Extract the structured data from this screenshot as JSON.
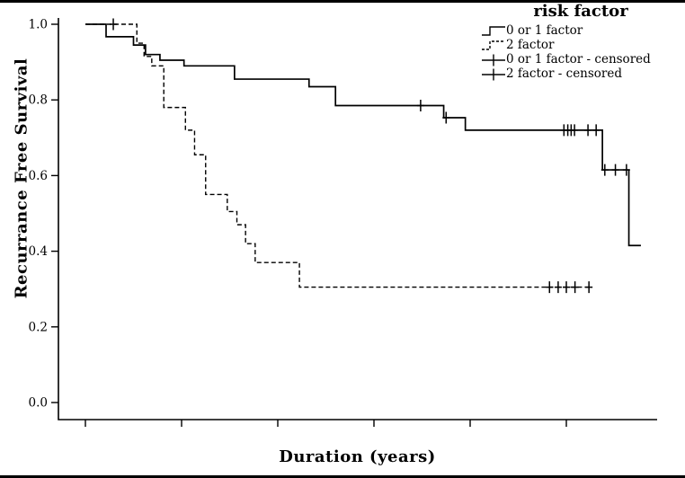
{
  "chart_data": {
    "type": "line",
    "chart_style": "kaplan-meier-step",
    "title": "",
    "xlabel": "Duration (years)",
    "ylabel": "Recurrance Free Survival",
    "grid": false,
    "legend": {
      "title": "risk factor",
      "position": "top-right",
      "entries": [
        {
          "label": "0 or 1 factor",
          "sample": "solid-step"
        },
        {
          "label": "2 factor",
          "sample": "dashed-step"
        },
        {
          "label": "0 or 1 factor - censored",
          "sample": "line-plus"
        },
        {
          "label": "2 factor - censored",
          "sample": "line-plus"
        }
      ]
    },
    "axes": {
      "xlim": [
        0,
        12.4
      ],
      "ylim": [
        0,
        1.05
      ],
      "x_ticks": [
        0,
        2,
        4,
        6,
        8,
        10
      ],
      "x_tick_labels": [
        "",
        "",
        "",
        "",
        "",
        ""
      ],
      "y_ticks": [
        1.0,
        0.8,
        0.6,
        0.4,
        0.2,
        0.0
      ],
      "y_tick_labels": [
        "1.0",
        "0.8",
        "0.6",
        "0.4",
        "0.2",
        "0.0"
      ]
    },
    "series": [
      {
        "name": "0 or 1 factor",
        "line_style": "solid",
        "color": "#000000",
        "steps": [
          [
            0,
            1.0
          ],
          [
            0.43,
            0.967
          ],
          [
            1.0,
            0.945
          ],
          [
            1.25,
            0.92
          ],
          [
            1.55,
            0.905
          ],
          [
            2.05,
            0.89
          ],
          [
            3.1,
            0.855
          ],
          [
            4.65,
            0.835
          ],
          [
            5.2,
            0.785
          ],
          [
            7.45,
            0.753
          ],
          [
            7.9,
            0.72
          ],
          [
            10.75,
            0.615
          ],
          [
            11.3,
            0.415
          ],
          [
            11.55,
            0.415
          ]
        ],
        "censored": [
          [
            6.97,
            0.785
          ],
          [
            7.5,
            0.753
          ],
          [
            9.95,
            0.72
          ],
          [
            10.03,
            0.72
          ],
          [
            10.1,
            0.72
          ],
          [
            10.17,
            0.72
          ],
          [
            10.45,
            0.72
          ],
          [
            10.62,
            0.72
          ],
          [
            10.8,
            0.615
          ],
          [
            11.02,
            0.615
          ],
          [
            11.25,
            0.615
          ]
        ]
      },
      {
        "name": "2 factor",
        "line_style": "dashed",
        "color": "#000000",
        "steps": [
          [
            0,
            1.0
          ],
          [
            1.07,
            0.95
          ],
          [
            1.22,
            0.915
          ],
          [
            1.38,
            0.89
          ],
          [
            1.63,
            0.78
          ],
          [
            2.08,
            0.72
          ],
          [
            2.27,
            0.655
          ],
          [
            2.5,
            0.55
          ],
          [
            2.95,
            0.505
          ],
          [
            3.15,
            0.47
          ],
          [
            3.33,
            0.42
          ],
          [
            3.53,
            0.37
          ],
          [
            4.45,
            0.305
          ],
          [
            10.5,
            0.305
          ]
        ],
        "censored": [
          [
            0.58,
            1.0
          ],
          [
            9.65,
            0.305
          ],
          [
            9.83,
            0.305
          ],
          [
            10.0,
            0.305
          ],
          [
            10.18,
            0.305
          ],
          [
            10.47,
            0.305
          ]
        ]
      }
    ]
  }
}
